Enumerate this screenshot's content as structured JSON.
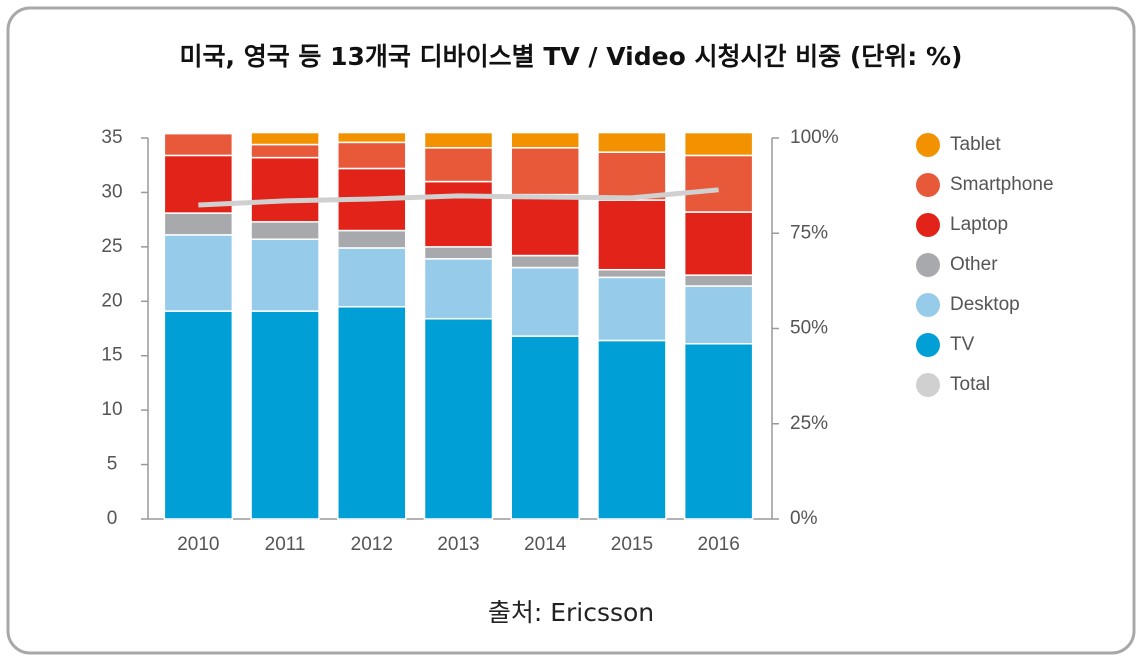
{
  "chart_data": {
    "type": "bar",
    "title": "미국, 영국 등 13개국 디바이스별 TV / Video 시청시간 비중 (단위: %)",
    "source": "출처: Ericsson",
    "categories": [
      "2010",
      "2011",
      "2012",
      "2013",
      "2014",
      "2015",
      "2016"
    ],
    "series": [
      {
        "name": "TV",
        "color": "#00a0d6",
        "values": [
          19.1,
          19.1,
          19.5,
          18.4,
          16.8,
          16.4,
          16.1
        ]
      },
      {
        "name": "Desktop",
        "color": "#96cbea",
        "values": [
          7.0,
          6.6,
          5.4,
          5.5,
          6.3,
          5.8,
          5.3
        ]
      },
      {
        "name": "Other",
        "color": "#a7a9ac",
        "values": [
          2.0,
          1.6,
          1.6,
          1.1,
          1.1,
          0.7,
          1.0
        ]
      },
      {
        "name": "Laptop",
        "color": "#e2231a",
        "values": [
          5.3,
          5.9,
          5.7,
          6.0,
          5.6,
          6.4,
          5.8
        ]
      },
      {
        "name": "Smartphone",
        "color": "#e8593a",
        "values": [
          2.0,
          1.2,
          2.4,
          3.1,
          4.3,
          4.4,
          5.2
        ]
      },
      {
        "name": "Tablet",
        "color": "#f39200",
        "values": [
          0,
          1.1,
          0.9,
          1.4,
          1.4,
          1.8,
          2.1
        ]
      },
      {
        "name": "Total",
        "color": "#d0d0d0",
        "type": "line",
        "axis": "y2",
        "values": [
          82.4,
          83.5,
          84.0,
          84.8,
          84.5,
          84.3,
          86.4
        ]
      }
    ],
    "stacked": true,
    "ylim": [
      0,
      35
    ],
    "yticks": [
      0,
      5,
      10,
      15,
      20,
      25,
      30,
      35
    ],
    "y2lim": [
      0,
      100
    ],
    "y2ticks": [
      {
        "value": 0,
        "label": "0%"
      },
      {
        "value": 25,
        "label": "25%"
      },
      {
        "value": 50,
        "label": "50%"
      },
      {
        "value": 75,
        "label": "75%"
      },
      {
        "value": 100,
        "label": "100%"
      }
    ],
    "legend": "right"
  }
}
